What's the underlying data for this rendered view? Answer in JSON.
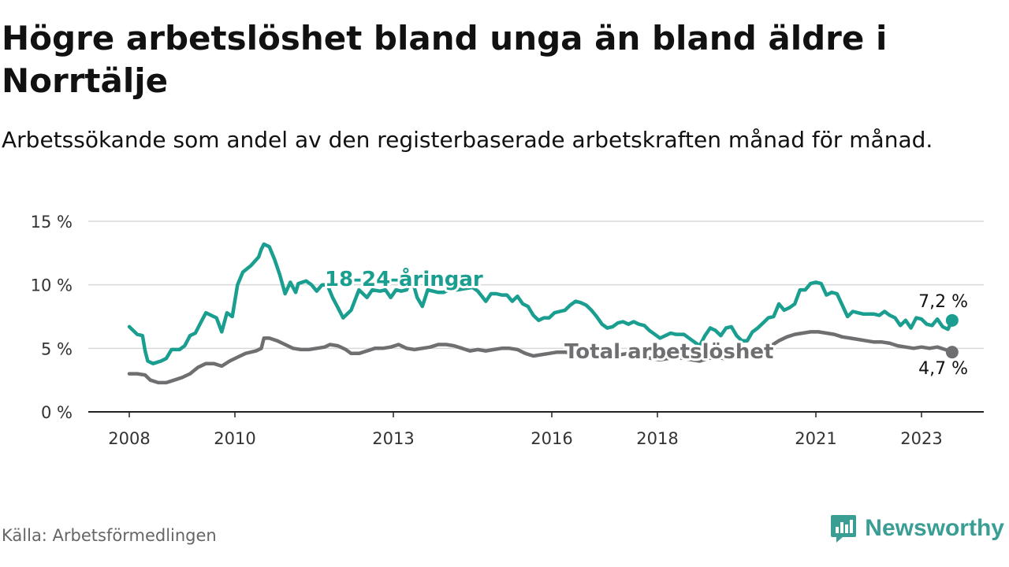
{
  "title": "Högre arbetslöshet bland unga än bland äldre i Norrtälje",
  "subtitle": "Arbetssökande som andel av den registerbaserade arbetskraften månad för månad.",
  "source": "Källa: Arbetsförmedlingen",
  "brand": {
    "name": "Newsworthy",
    "icon": "newsworthy-logo-icon",
    "color": "#3a9e95"
  },
  "chart_data": {
    "type": "line",
    "title": "Högre arbetslöshet bland unga än bland äldre i Norrtälje",
    "xlabel": "",
    "ylabel": "",
    "x_range": [
      2007.6,
      2023.8
    ],
    "ylim": [
      0,
      15
    ],
    "y_ticks": [
      0,
      5,
      10,
      15
    ],
    "y_tick_labels": [
      "0 %",
      "5 %",
      "10 %",
      "15 %"
    ],
    "x_ticks": [
      2008,
      2010,
      2013,
      2016,
      2018,
      2021,
      2023
    ],
    "x_tick_labels": [
      "2008",
      "2010",
      "2013",
      "2016",
      "2018",
      "2021",
      "2023"
    ],
    "grid": true,
    "series": [
      {
        "name": "18-24-åringar",
        "color": "#1a9e90",
        "end_label": "7,2 %",
        "points": [
          [
            2008.0,
            6.7
          ],
          [
            2008.15,
            6.1
          ],
          [
            2008.25,
            6.0
          ],
          [
            2008.3,
            4.8
          ],
          [
            2008.35,
            4.0
          ],
          [
            2008.45,
            3.8
          ],
          [
            2008.6,
            4.0
          ],
          [
            2008.7,
            4.2
          ],
          [
            2008.8,
            4.9
          ],
          [
            2008.95,
            4.9
          ],
          [
            2009.05,
            5.2
          ],
          [
            2009.15,
            6.0
          ],
          [
            2009.25,
            6.2
          ],
          [
            2009.35,
            7.0
          ],
          [
            2009.45,
            7.8
          ],
          [
            2009.55,
            7.6
          ],
          [
            2009.65,
            7.4
          ],
          [
            2009.75,
            6.3
          ],
          [
            2009.85,
            7.8
          ],
          [
            2009.95,
            7.5
          ],
          [
            2010.05,
            10.0
          ],
          [
            2010.15,
            11.0
          ],
          [
            2010.3,
            11.5
          ],
          [
            2010.45,
            12.2
          ],
          [
            2010.5,
            12.8
          ],
          [
            2010.55,
            13.2
          ],
          [
            2010.65,
            13.0
          ],
          [
            2010.75,
            12.0
          ],
          [
            2010.85,
            10.8
          ],
          [
            2010.95,
            9.3
          ],
          [
            2011.05,
            10.2
          ],
          [
            2011.15,
            9.4
          ],
          [
            2011.2,
            10.1
          ],
          [
            2011.35,
            10.3
          ],
          [
            2011.45,
            10.0
          ],
          [
            2011.55,
            9.5
          ],
          [
            2011.65,
            10.0
          ],
          [
            2011.75,
            10.0
          ],
          [
            2011.85,
            9.0
          ],
          [
            2011.95,
            8.2
          ],
          [
            2012.05,
            7.4
          ],
          [
            2012.2,
            8.0
          ],
          [
            2012.35,
            9.6
          ],
          [
            2012.5,
            9.0
          ],
          [
            2012.6,
            9.6
          ],
          [
            2012.75,
            9.5
          ],
          [
            2012.85,
            9.6
          ],
          [
            2012.95,
            9.0
          ],
          [
            2013.05,
            9.6
          ],
          [
            2013.15,
            9.5
          ],
          [
            2013.25,
            9.6
          ],
          [
            2013.35,
            10.5
          ],
          [
            2013.45,
            9.0
          ],
          [
            2013.55,
            8.3
          ],
          [
            2013.65,
            9.6
          ],
          [
            2013.75,
            9.5
          ],
          [
            2013.85,
            9.4
          ],
          [
            2013.95,
            9.4
          ],
          [
            2014.05,
            9.6
          ],
          [
            2014.2,
            9.6
          ],
          [
            2014.35,
            9.7
          ],
          [
            2014.5,
            9.8
          ],
          [
            2014.6,
            9.5
          ],
          [
            2014.75,
            8.7
          ],
          [
            2014.85,
            9.3
          ],
          [
            2014.95,
            9.3
          ],
          [
            2015.05,
            9.2
          ],
          [
            2015.15,
            9.2
          ],
          [
            2015.25,
            8.7
          ],
          [
            2015.35,
            9.1
          ],
          [
            2015.45,
            8.5
          ],
          [
            2015.55,
            8.3
          ],
          [
            2015.65,
            7.6
          ],
          [
            2015.75,
            7.2
          ],
          [
            2015.85,
            7.4
          ],
          [
            2015.95,
            7.4
          ],
          [
            2016.05,
            7.8
          ],
          [
            2016.15,
            7.9
          ],
          [
            2016.25,
            8.0
          ],
          [
            2016.35,
            8.4
          ],
          [
            2016.45,
            8.7
          ],
          [
            2016.55,
            8.6
          ],
          [
            2016.65,
            8.4
          ],
          [
            2016.75,
            8.0
          ],
          [
            2016.85,
            7.5
          ],
          [
            2016.95,
            6.9
          ],
          [
            2017.05,
            6.6
          ],
          [
            2017.15,
            6.7
          ],
          [
            2017.25,
            7.0
          ],
          [
            2017.35,
            7.1
          ],
          [
            2017.45,
            6.9
          ],
          [
            2017.55,
            7.1
          ],
          [
            2017.65,
            6.9
          ],
          [
            2017.75,
            6.8
          ],
          [
            2017.85,
            6.4
          ],
          [
            2017.95,
            6.1
          ],
          [
            2018.05,
            5.8
          ],
          [
            2018.15,
            6.0
          ],
          [
            2018.25,
            6.2
          ],
          [
            2018.35,
            6.1
          ],
          [
            2018.5,
            6.1
          ],
          [
            2018.6,
            5.8
          ],
          [
            2018.7,
            5.5
          ],
          [
            2018.8,
            5.2
          ],
          [
            2018.9,
            6.0
          ],
          [
            2019.0,
            6.6
          ],
          [
            2019.1,
            6.4
          ],
          [
            2019.2,
            6.0
          ],
          [
            2019.3,
            6.6
          ],
          [
            2019.4,
            6.7
          ],
          [
            2019.5,
            6.0
          ],
          [
            2019.6,
            5.6
          ],
          [
            2019.7,
            5.6
          ],
          [
            2019.8,
            6.3
          ],
          [
            2019.9,
            6.6
          ],
          [
            2020.0,
            7.0
          ],
          [
            2020.1,
            7.4
          ],
          [
            2020.2,
            7.5
          ],
          [
            2020.3,
            8.5
          ],
          [
            2020.4,
            8.0
          ],
          [
            2020.5,
            8.2
          ],
          [
            2020.6,
            8.5
          ],
          [
            2020.7,
            9.6
          ],
          [
            2020.8,
            9.6
          ],
          [
            2020.9,
            10.1
          ],
          [
            2021.0,
            10.2
          ],
          [
            2021.1,
            10.1
          ],
          [
            2021.2,
            9.2
          ],
          [
            2021.3,
            9.4
          ],
          [
            2021.4,
            9.3
          ],
          [
            2021.5,
            8.4
          ],
          [
            2021.6,
            7.5
          ],
          [
            2021.7,
            7.9
          ],
          [
            2021.8,
            7.8
          ],
          [
            2021.9,
            7.7
          ],
          [
            2022.0,
            7.7
          ],
          [
            2022.1,
            7.7
          ],
          [
            2022.2,
            7.6
          ],
          [
            2022.3,
            7.9
          ],
          [
            2022.4,
            7.6
          ],
          [
            2022.5,
            7.4
          ],
          [
            2022.6,
            6.8
          ],
          [
            2022.7,
            7.2
          ],
          [
            2022.8,
            6.6
          ],
          [
            2022.9,
            7.4
          ],
          [
            2023.0,
            7.3
          ],
          [
            2023.1,
            6.9
          ],
          [
            2023.2,
            6.8
          ],
          [
            2023.3,
            7.3
          ],
          [
            2023.4,
            6.7
          ],
          [
            2023.5,
            6.5
          ],
          [
            2023.58,
            7.2
          ]
        ]
      },
      {
        "name": "Total arbetslöshet",
        "color": "#6f6f72",
        "end_label": "4,7 %",
        "points": [
          [
            2008.0,
            3.0
          ],
          [
            2008.15,
            3.0
          ],
          [
            2008.3,
            2.9
          ],
          [
            2008.4,
            2.5
          ],
          [
            2008.55,
            2.3
          ],
          [
            2008.7,
            2.3
          ],
          [
            2008.85,
            2.5
          ],
          [
            2009.0,
            2.7
          ],
          [
            2009.15,
            3.0
          ],
          [
            2009.3,
            3.5
          ],
          [
            2009.45,
            3.8
          ],
          [
            2009.6,
            3.8
          ],
          [
            2009.75,
            3.6
          ],
          [
            2009.9,
            4.0
          ],
          [
            2010.05,
            4.3
          ],
          [
            2010.2,
            4.6
          ],
          [
            2010.4,
            4.8
          ],
          [
            2010.5,
            5.0
          ],
          [
            2010.55,
            5.8
          ],
          [
            2010.65,
            5.8
          ],
          [
            2010.8,
            5.6
          ],
          [
            2010.95,
            5.3
          ],
          [
            2011.1,
            5.0
          ],
          [
            2011.25,
            4.9
          ],
          [
            2011.4,
            4.9
          ],
          [
            2011.55,
            5.0
          ],
          [
            2011.7,
            5.1
          ],
          [
            2011.8,
            5.3
          ],
          [
            2011.95,
            5.2
          ],
          [
            2012.1,
            4.9
          ],
          [
            2012.2,
            4.6
          ],
          [
            2012.35,
            4.6
          ],
          [
            2012.5,
            4.8
          ],
          [
            2012.65,
            5.0
          ],
          [
            2012.8,
            5.0
          ],
          [
            2012.95,
            5.1
          ],
          [
            2013.1,
            5.3
          ],
          [
            2013.25,
            5.0
          ],
          [
            2013.4,
            4.9
          ],
          [
            2013.55,
            5.0
          ],
          [
            2013.7,
            5.1
          ],
          [
            2013.85,
            5.3
          ],
          [
            2014.0,
            5.3
          ],
          [
            2014.15,
            5.2
          ],
          [
            2014.3,
            5.0
          ],
          [
            2014.45,
            4.8
          ],
          [
            2014.6,
            4.9
          ],
          [
            2014.75,
            4.8
          ],
          [
            2014.9,
            4.9
          ],
          [
            2015.05,
            5.0
          ],
          [
            2015.2,
            5.0
          ],
          [
            2015.35,
            4.9
          ],
          [
            2015.5,
            4.6
          ],
          [
            2015.65,
            4.4
          ],
          [
            2015.8,
            4.5
          ],
          [
            2015.95,
            4.6
          ],
          [
            2016.1,
            4.7
          ],
          [
            2016.25,
            4.7
          ],
          [
            2016.4,
            4.6
          ],
          [
            2016.55,
            4.8
          ],
          [
            2016.7,
            4.7
          ],
          [
            2016.85,
            4.5
          ],
          [
            2017.0,
            4.3
          ],
          [
            2017.15,
            4.4
          ],
          [
            2017.3,
            4.5
          ],
          [
            2017.45,
            4.6
          ],
          [
            2017.6,
            4.4
          ],
          [
            2017.75,
            4.3
          ],
          [
            2017.9,
            4.2
          ],
          [
            2018.05,
            4.1
          ],
          [
            2018.2,
            4.2
          ],
          [
            2018.35,
            4.3
          ],
          [
            2018.5,
            4.2
          ],
          [
            2018.65,
            4.1
          ],
          [
            2018.8,
            4.0
          ],
          [
            2018.95,
            4.2
          ],
          [
            2019.1,
            4.3
          ],
          [
            2019.25,
            4.2
          ],
          [
            2019.4,
            4.4
          ],
          [
            2019.55,
            4.3
          ],
          [
            2019.7,
            4.4
          ],
          [
            2019.85,
            4.6
          ],
          [
            2020.0,
            4.9
          ],
          [
            2020.15,
            5.2
          ],
          [
            2020.3,
            5.6
          ],
          [
            2020.45,
            5.9
          ],
          [
            2020.6,
            6.1
          ],
          [
            2020.75,
            6.2
          ],
          [
            2020.9,
            6.3
          ],
          [
            2021.05,
            6.3
          ],
          [
            2021.2,
            6.2
          ],
          [
            2021.35,
            6.1
          ],
          [
            2021.5,
            5.9
          ],
          [
            2021.65,
            5.8
          ],
          [
            2021.8,
            5.7
          ],
          [
            2021.95,
            5.6
          ],
          [
            2022.1,
            5.5
          ],
          [
            2022.25,
            5.5
          ],
          [
            2022.4,
            5.4
          ],
          [
            2022.55,
            5.2
          ],
          [
            2022.7,
            5.1
          ],
          [
            2022.85,
            5.0
          ],
          [
            2023.0,
            5.1
          ],
          [
            2023.15,
            5.0
          ],
          [
            2023.3,
            5.1
          ],
          [
            2023.45,
            4.9
          ],
          [
            2023.58,
            4.7
          ]
        ]
      }
    ]
  }
}
